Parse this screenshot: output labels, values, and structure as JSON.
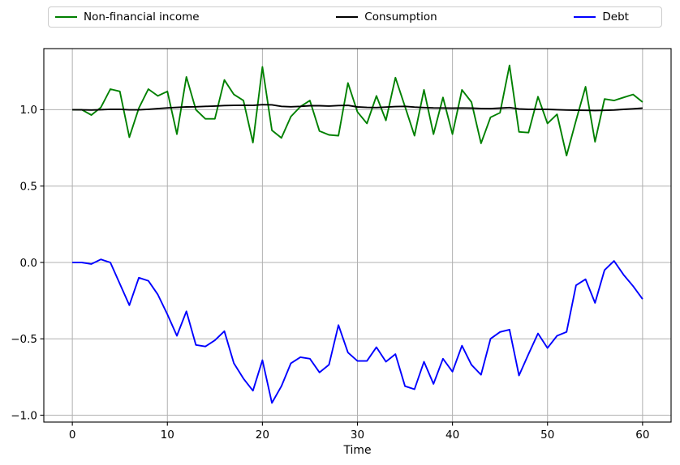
{
  "figure": {
    "background": "#ffffff",
    "legend": {
      "position": "top strip above axes, horizontal, 3 columns",
      "items": [
        {
          "label": "Non-financial income",
          "color": "#008000"
        },
        {
          "label": "Consumption",
          "color": "#000000"
        },
        {
          "label": "Debt",
          "color": "#0000ff"
        }
      ]
    }
  },
  "chart_data": {
    "type": "line",
    "title": "",
    "xlabel": "Time",
    "ylabel": "",
    "grid": true,
    "grid_color": "#b0b0b0",
    "xlim": [
      -3,
      63
    ],
    "ylim": [
      -1.045,
      1.4
    ],
    "x_ticks": [
      0,
      10,
      20,
      30,
      40,
      50,
      60
    ],
    "x_tick_labels": [
      "0",
      "10",
      "20",
      "30",
      "40",
      "50",
      "60"
    ],
    "y_ticks": [
      -1.0,
      -0.5,
      0.0,
      0.5,
      1.0
    ],
    "y_tick_labels": [
      "−1.0",
      "−0.5",
      "0.0",
      "0.5",
      "1.0"
    ],
    "x": [
      0,
      1,
      2,
      3,
      4,
      5,
      6,
      7,
      8,
      9,
      10,
      11,
      12,
      13,
      14,
      15,
      16,
      17,
      18,
      19,
      20,
      21,
      22,
      23,
      24,
      25,
      26,
      27,
      28,
      29,
      30,
      31,
      32,
      33,
      34,
      35,
      36,
      37,
      38,
      39,
      40,
      41,
      42,
      43,
      44,
      45,
      46,
      47,
      48,
      49,
      50,
      51,
      52,
      53,
      54,
      55,
      56,
      57,
      58,
      59,
      60
    ],
    "series": [
      {
        "name": "Non-financial income",
        "color": "#008000",
        "values": [
          1.0,
          1.0,
          0.965,
          1.015,
          1.135,
          1.12,
          0.82,
          1.01,
          1.135,
          1.09,
          1.12,
          0.84,
          1.215,
          1.0,
          0.94,
          0.94,
          1.195,
          1.1,
          1.06,
          0.785,
          1.28,
          0.865,
          0.815,
          0.955,
          1.02,
          1.06,
          0.86,
          0.835,
          0.83,
          1.175,
          0.985,
          0.91,
          1.09,
          0.93,
          1.21,
          1.02,
          0.83,
          1.13,
          0.84,
          1.08,
          0.84,
          1.13,
          1.05,
          0.78,
          0.95,
          0.98,
          1.29,
          0.855,
          0.85,
          1.085,
          0.91,
          0.97,
          0.7,
          0.93,
          1.15,
          0.79,
          1.07,
          1.06,
          1.08,
          1.1,
          1.05
        ]
      },
      {
        "name": "Consumption",
        "color": "#000000",
        "values": [
          1.0,
          0.999,
          0.998,
          1.0,
          1.003,
          1.003,
          0.999,
          0.999,
          1.003,
          1.007,
          1.012,
          1.015,
          1.018,
          1.019,
          1.022,
          1.024,
          1.027,
          1.028,
          1.029,
          1.028,
          1.033,
          1.032,
          1.022,
          1.019,
          1.022,
          1.026,
          1.026,
          1.024,
          1.027,
          1.028,
          1.018,
          1.015,
          1.014,
          1.017,
          1.02,
          1.022,
          1.017,
          1.014,
          1.012,
          1.011,
          1.01,
          1.011,
          1.01,
          1.008,
          1.007,
          1.01,
          1.014,
          1.005,
          1.003,
          1.003,
          1.002,
          1.0,
          0.998,
          0.997,
          0.996,
          0.995,
          0.996,
          0.998,
          1.002,
          1.006,
          1.01
        ]
      },
      {
        "name": "Debt",
        "color": "#0000ff",
        "values": [
          0.0,
          0.0,
          -0.01,
          0.02,
          0.0,
          -0.14,
          -0.28,
          -0.1,
          -0.12,
          -0.21,
          -0.34,
          -0.48,
          -0.32,
          -0.54,
          -0.55,
          -0.51,
          -0.45,
          -0.66,
          -0.76,
          -0.84,
          -0.64,
          -0.92,
          -0.81,
          -0.66,
          -0.62,
          -0.63,
          -0.72,
          -0.67,
          -0.41,
          -0.59,
          -0.645,
          -0.645,
          -0.555,
          -0.65,
          -0.6,
          -0.81,
          -0.83,
          -0.65,
          -0.795,
          -0.63,
          -0.715,
          -0.545,
          -0.67,
          -0.735,
          -0.5,
          -0.455,
          -0.44,
          -0.74,
          -0.6,
          -0.465,
          -0.56,
          -0.48,
          -0.455,
          -0.15,
          -0.11,
          -0.265,
          -0.05,
          0.01,
          -0.08,
          -0.155,
          -0.24
        ]
      }
    ]
  }
}
